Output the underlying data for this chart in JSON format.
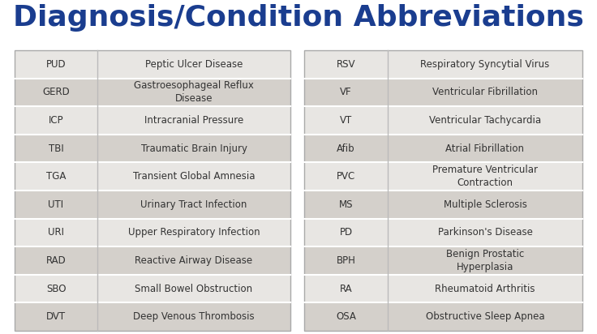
{
  "title": "Diagnosis/Condition Abbreviations",
  "title_color": "#1a3d8f",
  "title_fontsize": 26,
  "background_color": "#ffffff",
  "table_bg_light": "#e8e6e3",
  "table_bg_dark": "#d4d0cb",
  "row_border_color": "#ffffff",
  "left_table": [
    [
      "PUD",
      "Peptic Ulcer Disease"
    ],
    [
      "GERD",
      "Gastroesophageal Reflux\nDisease"
    ],
    [
      "ICP",
      "Intracranial Pressure"
    ],
    [
      "TBI",
      "Traumatic Brain Injury"
    ],
    [
      "TGA",
      "Transient Global Amnesia"
    ],
    [
      "UTI",
      "Urinary Tract Infection"
    ],
    [
      "URI",
      "Upper Respiratory Infection"
    ],
    [
      "RAD",
      "Reactive Airway Disease"
    ],
    [
      "SBO",
      "Small Bowel Obstruction"
    ],
    [
      "DVT",
      "Deep Venous Thrombosis"
    ]
  ],
  "right_table": [
    [
      "RSV",
      "Respiratory Syncytial Virus"
    ],
    [
      "VF",
      "Ventricular Fibrillation"
    ],
    [
      "VT",
      "Ventricular Tachycardia"
    ],
    [
      "Afib",
      "Atrial Fibrillation"
    ],
    [
      "PVC",
      "Premature Ventricular\nContraction"
    ],
    [
      "MS",
      "Multiple Sclerosis"
    ],
    [
      "PD",
      "Parkinson's Disease"
    ],
    [
      "BPH",
      "Benign Prostatic\nHyperplasia"
    ],
    [
      "RA",
      "Rheumatoid Arthritis"
    ],
    [
      "OSA",
      "Obstructive Sleep Apnea"
    ]
  ],
  "cell_text_color": "#333333",
  "abbr_fontsize": 8.5,
  "name_fontsize": 8.5,
  "table_outer_border_color": "#aaaaaa",
  "col_divider_color": "#bbbbbb"
}
